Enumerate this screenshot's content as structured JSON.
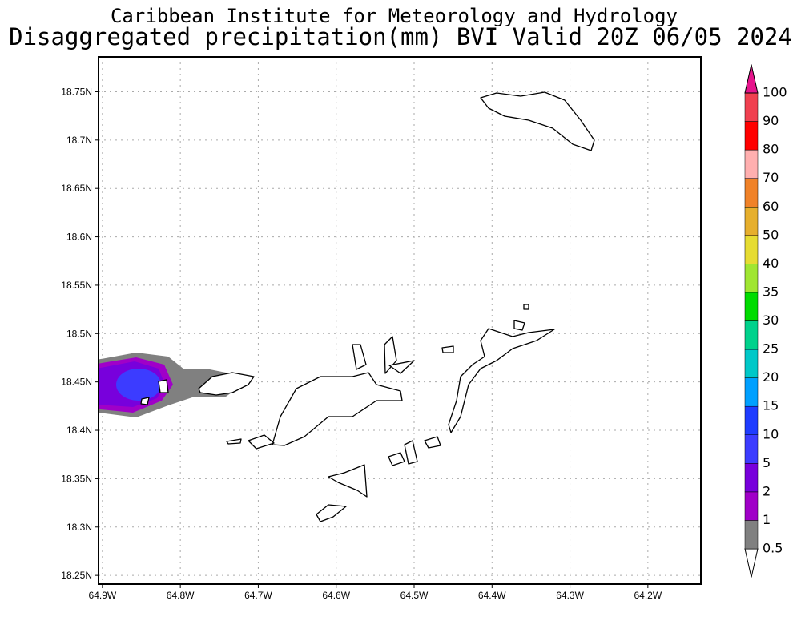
{
  "header": {
    "line1": "Caribbean Institute for Meteorology and Hydrology",
    "line2": "Disaggregated precipitation(mm) BVI Valid 20Z 06/05 2024"
  },
  "map": {
    "lon_range": [
      -64.905,
      -64.132
    ],
    "lat_range": [
      18.241,
      18.786
    ],
    "xticks": [
      {
        "value": -64.9,
        "label": "64.9W"
      },
      {
        "value": -64.8,
        "label": "64.8W"
      },
      {
        "value": -64.7,
        "label": "64.7W"
      },
      {
        "value": -64.6,
        "label": "64.6W"
      },
      {
        "value": -64.5,
        "label": "64.5W"
      },
      {
        "value": -64.4,
        "label": "64.4W"
      },
      {
        "value": -64.3,
        "label": "64.3W"
      },
      {
        "value": -64.2,
        "label": "64.2W"
      }
    ],
    "yticks": [
      {
        "value": 18.25,
        "label": "18.25N"
      },
      {
        "value": 18.3,
        "label": "18.3N"
      },
      {
        "value": 18.35,
        "label": "18.35N"
      },
      {
        "value": 18.4,
        "label": "18.4N"
      },
      {
        "value": 18.45,
        "label": "18.45N"
      },
      {
        "value": 18.5,
        "label": "18.5N"
      },
      {
        "value": 18.55,
        "label": "18.55N"
      },
      {
        "value": 18.6,
        "label": "18.6N"
      },
      {
        "value": 18.65,
        "label": "18.65N"
      },
      {
        "value": 18.7,
        "label": "18.7N"
      },
      {
        "value": 18.75,
        "label": "18.75N"
      }
    ],
    "grid": true
  },
  "colorbar": {
    "levels": [
      0.5,
      1,
      2,
      5,
      10,
      15,
      20,
      25,
      30,
      35,
      40,
      50,
      60,
      70,
      80,
      90,
      100
    ],
    "colors": [
      "#ffffff",
      "#808080",
      "#a000c8",
      "#7800dc",
      "#3c3cff",
      "#1e3cff",
      "#00a0ff",
      "#00c8c8",
      "#00d28c",
      "#00dc00",
      "#a0e632",
      "#e6dc32",
      "#e6af2d",
      "#f08228",
      "#ffafaf",
      "#ff0000",
      "#f04050",
      "#e6148c"
    ]
  }
}
